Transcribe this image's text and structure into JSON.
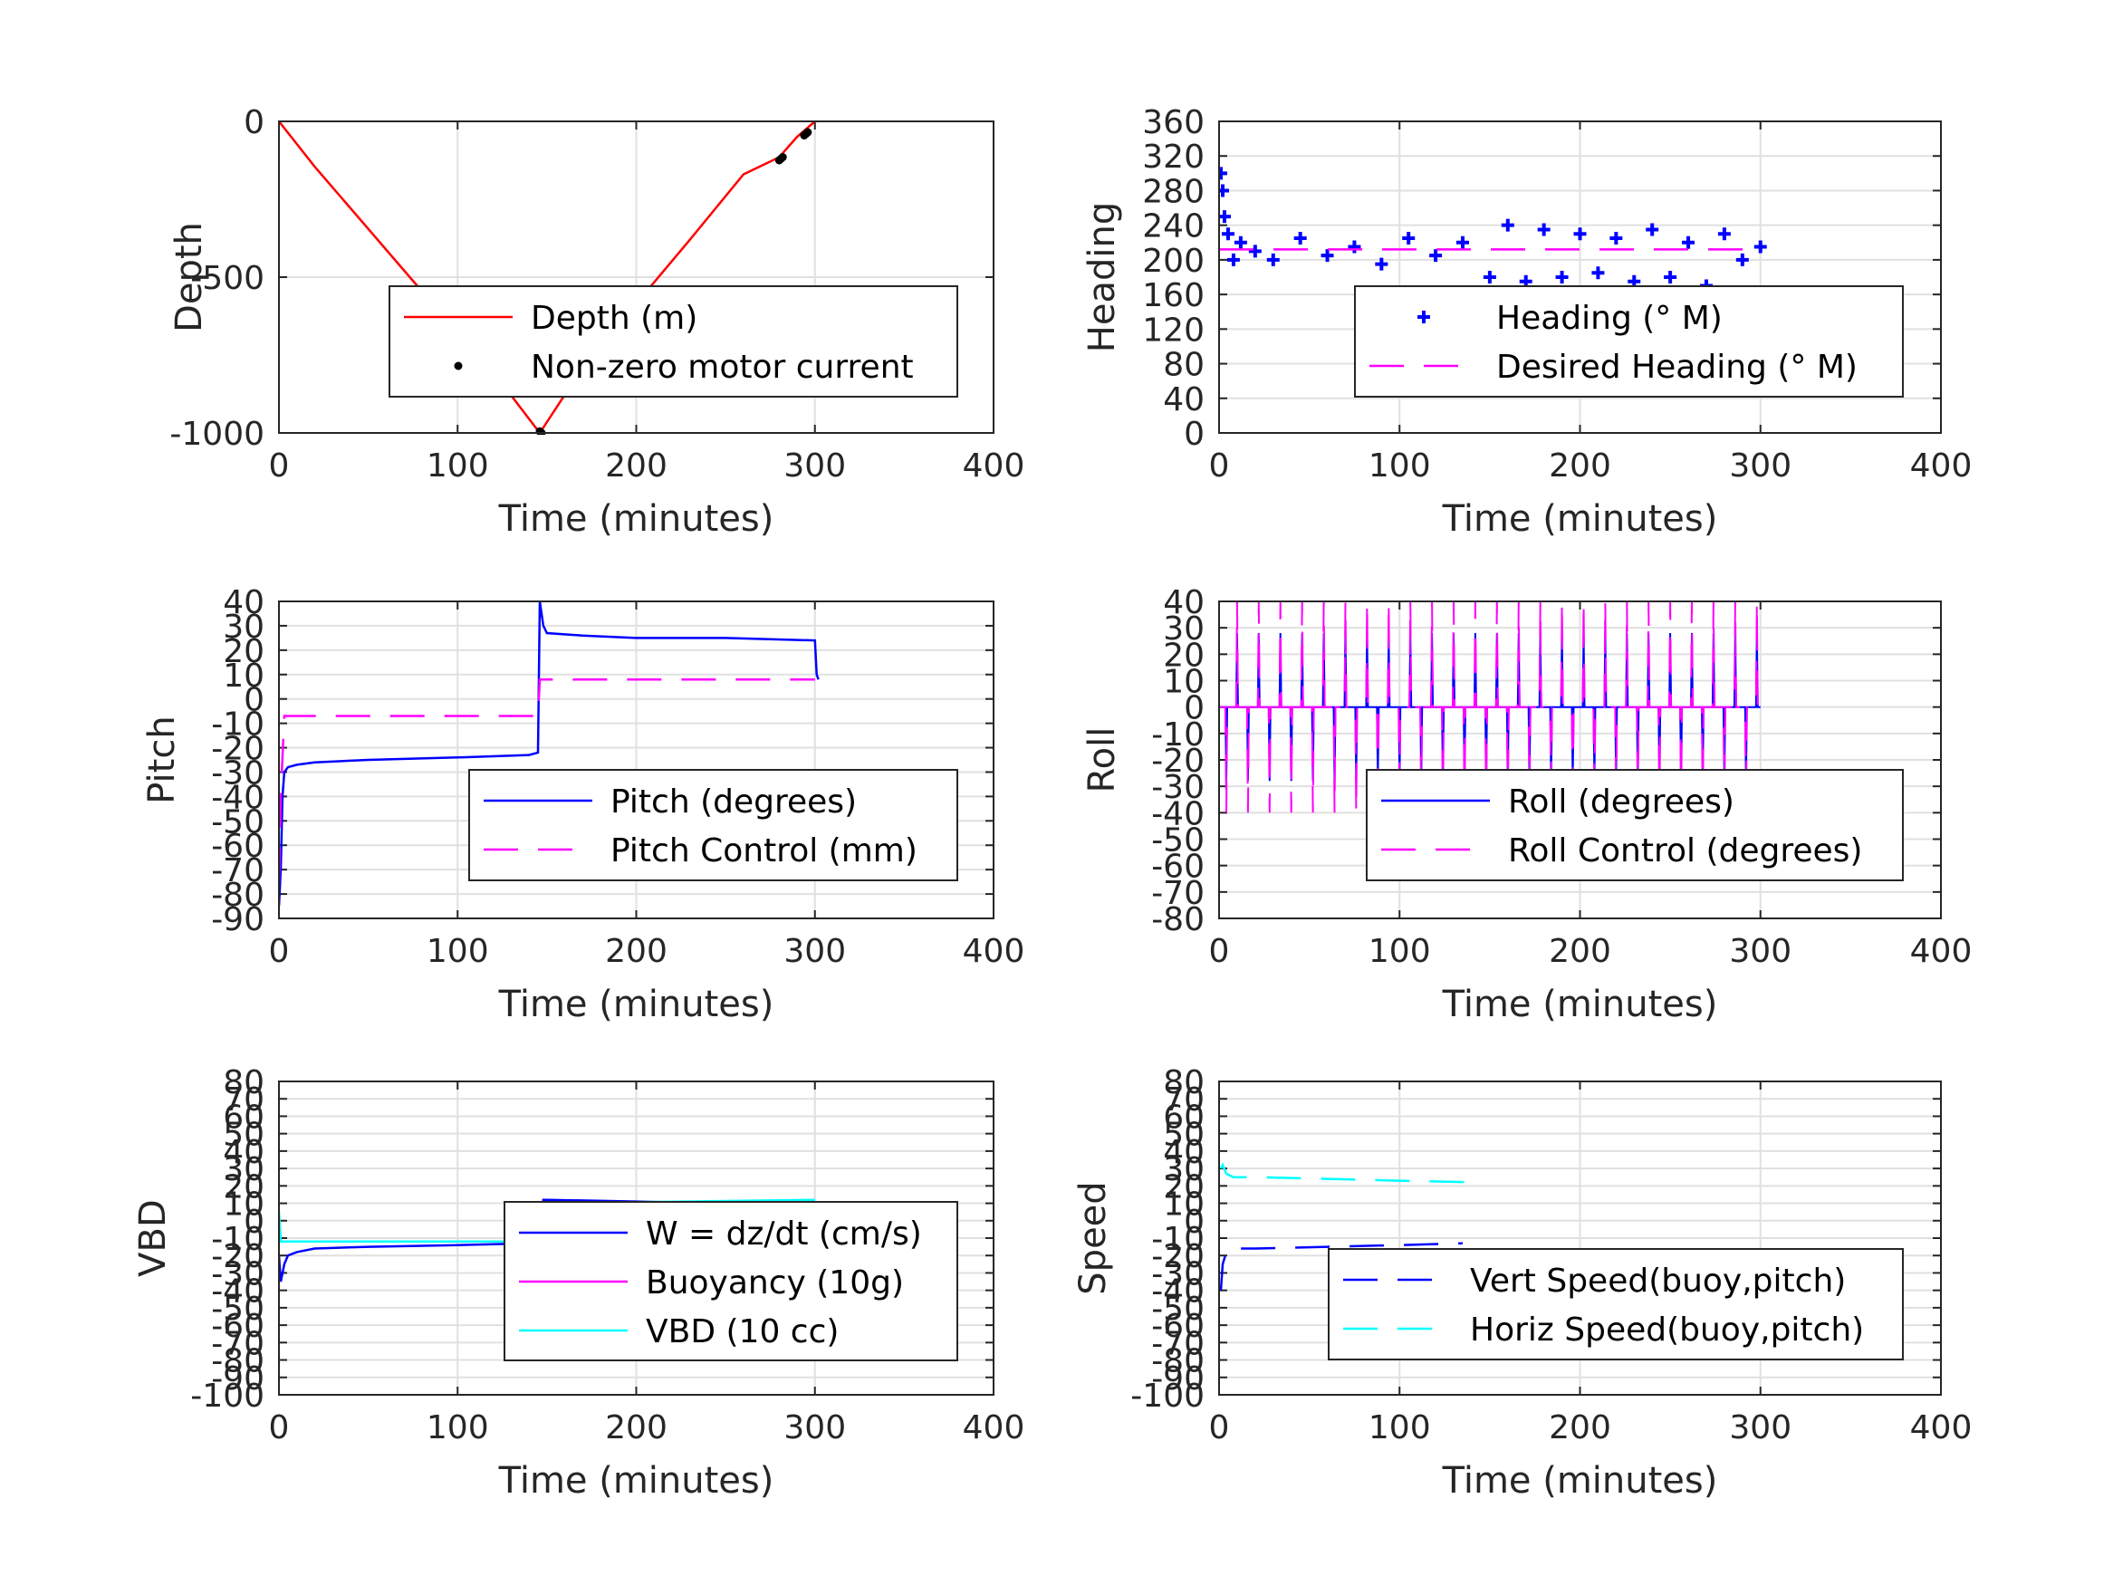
{
  "chart_data": [
    {
      "type": "line",
      "xlabel": "Time (minutes)",
      "ylabel": "Depth",
      "xlim": [
        0,
        400
      ],
      "ylim": [
        -1000,
        0
      ],
      "xticks": [
        "0",
        "100",
        "200",
        "300",
        "400"
      ],
      "yticks": [
        "0",
        "-500",
        "-1000"
      ],
      "grid": true,
      "legend_position": "inside-lower-right",
      "series": [
        {
          "name": "Depth (m)",
          "color": "#ff0000",
          "style": "solid",
          "x": [
            0,
            20,
            50,
            80,
            110,
            130,
            146,
            170,
            200,
            230,
            260,
            280,
            290,
            300
          ],
          "y": [
            0,
            -145,
            -345,
            -545,
            -745,
            -880,
            -1000,
            -790,
            -585,
            -380,
            -170,
            -115,
            -50,
            0
          ]
        },
        {
          "name": "Non-zero motor current",
          "color": "#000000",
          "style": "dot",
          "x": [
            146,
            147,
            280,
            281,
            282,
            294,
            295,
            296
          ],
          "y": [
            -995,
            -1000,
            -125,
            -120,
            -115,
            -45,
            -40,
            -35
          ]
        }
      ]
    },
    {
      "type": "scatter",
      "xlabel": "Time (minutes)",
      "ylabel": "Heading",
      "xlim": [
        0,
        400
      ],
      "ylim": [
        0,
        360
      ],
      "xticks": [
        "0",
        "100",
        "200",
        "300",
        "400"
      ],
      "yticks": [
        "0",
        "40",
        "80",
        "120",
        "160",
        "200",
        "240",
        "280",
        "320",
        "360"
      ],
      "grid": true,
      "legend_position": "inside-lower-right",
      "series": [
        {
          "name": "Heading (° M)",
          "color": "#0000ff",
          "style": "plus",
          "x": [
            1,
            2,
            3,
            5,
            8,
            12,
            20,
            30,
            45,
            60,
            75,
            90,
            105,
            120,
            135,
            150,
            160,
            170,
            180,
            190,
            200,
            210,
            220,
            230,
            240,
            250,
            260,
            270,
            280,
            290,
            300
          ],
          "y": [
            300,
            280,
            250,
            230,
            200,
            220,
            210,
            200,
            225,
            205,
            215,
            195,
            225,
            205,
            220,
            180,
            240,
            175,
            235,
            180,
            230,
            185,
            225,
            175,
            235,
            180,
            220,
            170,
            230,
            200,
            215
          ]
        },
        {
          "name": "Desired Heading (° M)",
          "color": "#ff00ff",
          "style": "dash",
          "x": [
            0,
            300
          ],
          "y": [
            212,
            212
          ]
        }
      ]
    },
    {
      "type": "line",
      "xlabel": "Time (minutes)",
      "ylabel": "Pitch",
      "xlim": [
        0,
        400
      ],
      "ylim": [
        -90,
        40
      ],
      "xticks": [
        "0",
        "100",
        "200",
        "300",
        "400"
      ],
      "yticks": [
        "-90",
        "-80",
        "-70",
        "-60",
        "-50",
        "-40",
        "-30",
        "-20",
        "-10",
        "0",
        "10",
        "20",
        "30",
        "40"
      ],
      "grid": true,
      "legend_position": "inside-lower-right",
      "series": [
        {
          "name": "Pitch (degrees)",
          "color": "#0000ff",
          "style": "solid",
          "x": [
            0,
            1,
            2,
            3,
            5,
            10,
            20,
            50,
            100,
            140,
            145,
            146,
            148,
            150,
            170,
            200,
            250,
            300,
            301,
            302
          ],
          "y": [
            -85,
            -70,
            -40,
            -30,
            -28,
            -27,
            -26,
            -25,
            -24,
            -23,
            -22,
            40,
            30,
            27,
            26,
            25,
            25,
            24,
            10,
            8
          ]
        },
        {
          "name": "Pitch Control (mm)",
          "color": "#ff00ff",
          "style": "dash",
          "x": [
            0,
            1,
            3,
            145,
            146,
            300
          ],
          "y": [
            -75,
            -40,
            -7,
            -7,
            8,
            8
          ]
        }
      ]
    },
    {
      "type": "line",
      "xlabel": "Time (minutes)",
      "ylabel": "Roll",
      "xlim": [
        0,
        400
      ],
      "ylim": [
        -80,
        40
      ],
      "xticks": [
        "0",
        "100",
        "200",
        "300",
        "400"
      ],
      "yticks": [
        "-80",
        "-70",
        "-60",
        "-50",
        "-40",
        "-30",
        "-20",
        "-10",
        "0",
        "10",
        "20",
        "30",
        "40"
      ],
      "grid": true,
      "legend_position": "inside-lower-right",
      "series": [
        {
          "name": "Roll (degrees)",
          "color": "#0000ff",
          "style": "solid",
          "x": [
            0,
            300
          ],
          "y": [
            0,
            0
          ],
          "oscillation_amplitude": 28
        },
        {
          "name": "Roll Control (degrees)",
          "color": "#ff00ff",
          "style": "dash",
          "x": [
            0,
            300
          ],
          "y": [
            0,
            0
          ],
          "oscillation_amplitude": 40
        }
      ]
    },
    {
      "type": "line",
      "xlabel": "Time (minutes)",
      "ylabel": "VBD",
      "xlim": [
        0,
        400
      ],
      "ylim": [
        -100,
        80
      ],
      "xticks": [
        "0",
        "100",
        "200",
        "300",
        "400"
      ],
      "yticks": [
        "-100",
        "-90",
        "-80",
        "-70",
        "-60",
        "-50",
        "-40",
        "-30",
        "-20",
        "-10",
        "0",
        "10",
        "20",
        "30",
        "40",
        "50",
        "60",
        "70",
        "80"
      ],
      "grid": true,
      "legend_position": "inside-lower-right",
      "series": [
        {
          "name": "W = dz/dt (cm/s)",
          "color": "#0000ff",
          "style": "solid",
          "x": [
            0,
            1,
            3,
            5,
            10,
            20,
            50,
            100,
            140,
            145,
            148,
            150,
            200,
            250,
            300
          ],
          "y": [
            -20,
            -35,
            -25,
            -20,
            -18,
            -16,
            -15,
            -14,
            -13,
            -12,
            12,
            12,
            11,
            10,
            9
          ]
        },
        {
          "name": "Buoyancy (10g)",
          "color": "#ff00ff",
          "style": "solid",
          "x": [
            0,
            1,
            3,
            145,
            146,
            300
          ],
          "y": [
            0,
            -12,
            -12,
            -12,
            10,
            10
          ]
        },
        {
          "name": "VBD (10 cc)",
          "color": "#00ffff",
          "style": "solid",
          "x": [
            0,
            1,
            3,
            145,
            146,
            300
          ],
          "y": [
            5,
            -12,
            -12,
            -12,
            10,
            12
          ]
        }
      ]
    },
    {
      "type": "line",
      "xlabel": "Time (minutes)",
      "ylabel": "Speed",
      "xlim": [
        0,
        400
      ],
      "ylim": [
        -100,
        80
      ],
      "xticks": [
        "0",
        "100",
        "200",
        "300",
        "400"
      ],
      "yticks": [
        "-100",
        "-90",
        "-80",
        "-70",
        "-60",
        "-50",
        "-40",
        "-30",
        "-20",
        "-10",
        "0",
        "10",
        "20",
        "30",
        "40",
        "50",
        "60",
        "70",
        "80"
      ],
      "grid": true,
      "legend_position": "inside-lower-right",
      "series": [
        {
          "name": "Vert Speed(buoy,pitch)",
          "color": "#0000ff",
          "style": "dash",
          "x": [
            1,
            2,
            4,
            8,
            20,
            60,
            100,
            135
          ],
          "y": [
            -40,
            -25,
            -18,
            -16,
            -16,
            -15,
            -14,
            -13
          ]
        },
        {
          "name": "Horiz Speed(buoy,pitch)",
          "color": "#00ffff",
          "style": "dash",
          "x": [
            1,
            2,
            4,
            8,
            20,
            60,
            100,
            145
          ],
          "y": [
            30,
            32,
            27,
            25,
            25,
            24,
            23,
            22
          ]
        }
      ]
    }
  ]
}
